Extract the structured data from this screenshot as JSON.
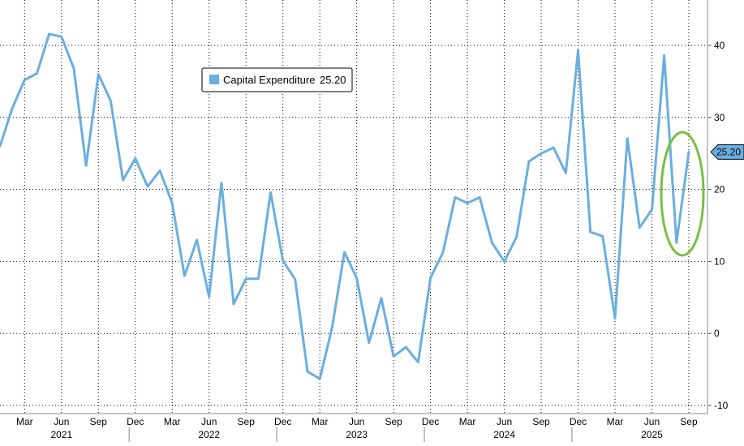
{
  "chart_data": {
    "type": "line",
    "title": "",
    "xlabel": "",
    "ylabel": "",
    "ylim": [
      -10,
      45
    ],
    "y_ticks": [
      40,
      30,
      20,
      10,
      0,
      -10
    ],
    "y_axis_side": "right",
    "grid": true,
    "grid_style": "dotted",
    "legend_position": "top-left",
    "x_tick_labels": [
      {
        "label": "Mar",
        "date": "2021-03"
      },
      {
        "label": "Jun",
        "date": "2021-06"
      },
      {
        "label": "Sep",
        "date": "2021-09"
      },
      {
        "label": "Dec",
        "date": "2021-12"
      },
      {
        "label": "Mar",
        "date": "2022-03"
      },
      {
        "label": "Jun",
        "date": "2022-06"
      },
      {
        "label": "Sep",
        "date": "2022-09"
      },
      {
        "label": "Dec",
        "date": "2022-12"
      },
      {
        "label": "Mar",
        "date": "2023-03"
      },
      {
        "label": "Jun",
        "date": "2023-06"
      },
      {
        "label": "Sep",
        "date": "2023-09"
      },
      {
        "label": "Dec",
        "date": "2023-12"
      },
      {
        "label": "Mar",
        "date": "2024-03"
      },
      {
        "label": "Jun",
        "date": "2024-06"
      },
      {
        "label": "Sep",
        "date": "2024-09"
      },
      {
        "label": "Dec",
        "date": "2024-12"
      },
      {
        "label": "Mar",
        "date": "2025-03"
      },
      {
        "label": "Jun",
        "date": "2025-06"
      },
      {
        "label": "Sep",
        "date": "2025-09"
      }
    ],
    "years": [
      {
        "label": "2021",
        "center_date": "2021-06"
      },
      {
        "label": "2022",
        "center_date": "2022-06"
      },
      {
        "label": "2023",
        "center_date": "2023-06"
      },
      {
        "label": "2024",
        "center_date": "2024-06"
      },
      {
        "label": "2025",
        "center_date": "2025-06"
      }
    ],
    "year_dividers": [
      "2021-11",
      "2022-11",
      "2023-11",
      "2024-11"
    ],
    "x_start": "2021-01",
    "x_end": "2025-12",
    "series": [
      {
        "name": "Capital Expenditure",
        "color": "#6aaee0",
        "last_value_label": "25.20",
        "points": [
          [
            "2021-01",
            26.0
          ],
          [
            "2021-02",
            31.3
          ],
          [
            "2021-03",
            35.2
          ],
          [
            "2021-04",
            36.1
          ],
          [
            "2021-05",
            41.6
          ],
          [
            "2021-06",
            41.2
          ],
          [
            "2021-07",
            36.8
          ],
          [
            "2021-08",
            23.3
          ],
          [
            "2021-09",
            36.0
          ],
          [
            "2021-10",
            32.3
          ],
          [
            "2021-11",
            21.3
          ],
          [
            "2021-12",
            24.3
          ],
          [
            "2022-01",
            20.4
          ],
          [
            "2022-02",
            22.6
          ],
          [
            "2022-03",
            18.1
          ],
          [
            "2022-04",
            8.0
          ],
          [
            "2022-05",
            13.0
          ],
          [
            "2022-06",
            5.1
          ],
          [
            "2022-07",
            20.9
          ],
          [
            "2022-08",
            4.1
          ],
          [
            "2022-09",
            7.6
          ],
          [
            "2022-10",
            7.6
          ],
          [
            "2022-11",
            19.6
          ],
          [
            "2022-12",
            10.1
          ],
          [
            "2023-01",
            7.5
          ],
          [
            "2023-02",
            -5.3
          ],
          [
            "2023-03",
            -6.3
          ],
          [
            "2023-04",
            0.8
          ],
          [
            "2023-05",
            11.3
          ],
          [
            "2023-06",
            7.7
          ],
          [
            "2023-07",
            -1.3
          ],
          [
            "2023-08",
            4.9
          ],
          [
            "2023-09",
            -3.2
          ],
          [
            "2023-10",
            -1.9
          ],
          [
            "2023-11",
            -4.0
          ],
          [
            "2023-12",
            7.7
          ],
          [
            "2024-01",
            11.2
          ],
          [
            "2024-02",
            18.9
          ],
          [
            "2024-03",
            18.1
          ],
          [
            "2024-04",
            18.9
          ],
          [
            "2024-05",
            12.6
          ],
          [
            "2024-06",
            10.0
          ],
          [
            "2024-07",
            13.4
          ],
          [
            "2024-08",
            23.9
          ],
          [
            "2024-09",
            25.0
          ],
          [
            "2024-10",
            25.8
          ],
          [
            "2024-11",
            22.3
          ],
          [
            "2024-12",
            39.3
          ],
          [
            "2025-01",
            14.1
          ],
          [
            "2025-02",
            13.5
          ],
          [
            "2025-03",
            2.1
          ],
          [
            "2025-04",
            27.1
          ],
          [
            "2025-05",
            14.7
          ],
          [
            "2025-06",
            17.2
          ],
          [
            "2025-07",
            38.6
          ],
          [
            "2025-08",
            12.6
          ],
          [
            "2025-09",
            25.2
          ]
        ]
      }
    ],
    "annotations": [
      {
        "type": "ellipse",
        "color": "#77c043",
        "target_dates": [
          "2025-08",
          "2025-09"
        ]
      }
    ]
  },
  "legend": {
    "series_label": "Capital Expenditure",
    "value": "25.20"
  },
  "colors": {
    "line": "#6aaee0",
    "grid": "#000000",
    "axis_text": "#000000",
    "annotation": "#77c043",
    "badge_fill": "#6aaee0"
  }
}
